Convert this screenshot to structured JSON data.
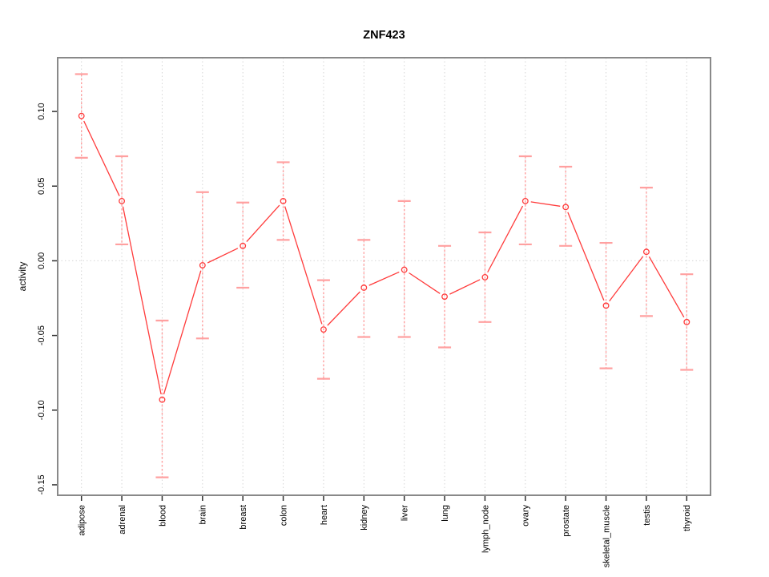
{
  "chart_data": {
    "type": "line",
    "title": "ZNF423",
    "xlabel": "",
    "ylabel": "activity",
    "categories": [
      "adipose",
      "adrenal",
      "blood",
      "brain",
      "breast",
      "colon",
      "heart",
      "kidney",
      "liver",
      "lung",
      "lymph_node",
      "ovary",
      "prostate",
      "skeletal_muscle",
      "testis",
      "thyroid"
    ],
    "series": [
      {
        "name": "activity",
        "values": [
          0.097,
          0.04,
          -0.093,
          -0.003,
          0.01,
          0.04,
          -0.046,
          -0.018,
          -0.006,
          -0.024,
          -0.011,
          0.04,
          0.036,
          -0.03,
          0.006,
          -0.041
        ]
      }
    ],
    "error_upper": [
      0.125,
      0.07,
      -0.04,
      0.046,
      0.039,
      0.066,
      -0.013,
      0.014,
      0.04,
      0.01,
      0.019,
      0.07,
      0.063,
      0.012,
      0.049,
      -0.009
    ],
    "error_lower": [
      0.069,
      0.011,
      -0.145,
      -0.052,
      -0.018,
      0.014,
      -0.079,
      -0.051,
      -0.051,
      -0.058,
      -0.041,
      0.011,
      0.01,
      -0.072,
      -0.037,
      -0.073
    ],
    "y_ticks": [
      -0.15,
      -0.1,
      -0.05,
      0.0,
      0.05,
      0.1
    ],
    "y_tick_labels": [
      "-0.15",
      "-0.10",
      "-0.05",
      "0.00",
      "0.05",
      "0.10"
    ],
    "ylim": [
      -0.157,
      0.136
    ],
    "grid": "vertical dotted line at each category, dotted horizontal line at zero",
    "legend": "none",
    "marker": "open-circle",
    "colors": {
      "series": "#ff3b3b",
      "error_bars": "#ffa0a0",
      "gridline": "#d6d6d6",
      "zero_line": "#d6d6d6",
      "box_border": "#898989",
      "tick": "#303030",
      "text": "#000000",
      "background": "#ffffff"
    }
  }
}
